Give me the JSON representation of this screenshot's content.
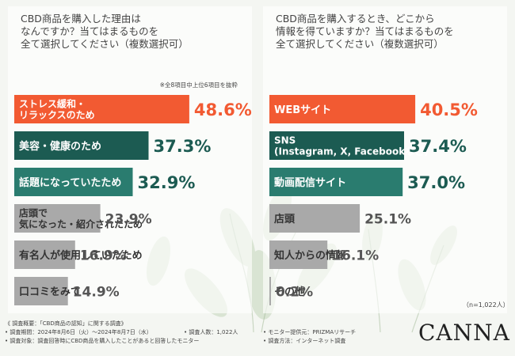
{
  "colors": {
    "highlight": "#f25a32",
    "dark": "#1c5b52",
    "mid": "#2a7c6f",
    "gray": "#a9a9a9",
    "value_highlight": "#f25a32",
    "value_dark": "#1c5b52",
    "value_gray": "#555555"
  },
  "left": {
    "title": "CBD商品を購入した理由は\nなんですか？当てはまるものを\n全て選択してください（複数選択可）",
    "note": "※全8項目中上位6項目を抜粋"
  },
  "right": {
    "title": "CBD商品を購入するとき、どこから\n情報を得ていますか？当てはまるものを\n全て選択してください（複数選択可）",
    "n": "（n=1,022人）"
  },
  "chart_data": [
    {
      "type": "bar",
      "orientation": "horizontal",
      "unit": "%",
      "categories": [
        "ストレス緩和・\nリラックスのため",
        "美容・健康のため",
        "話題になっていたため",
        "店頭で\n気になった・紹介されたため",
        "有名人が使用していたため",
        "口コミをみて"
      ],
      "values": [
        48.6,
        37.3,
        32.9,
        23.9,
        16.9,
        14.9
      ],
      "value_labels": [
        "48.6%",
        "37.3%",
        "32.9%",
        "23.9%",
        "16.9%",
        "14.9%"
      ],
      "styles": [
        "highlight",
        "dark",
        "mid",
        "gray",
        "gray",
        "gray"
      ]
    },
    {
      "type": "bar",
      "orientation": "horizontal",
      "unit": "%",
      "categories": [
        "WEBサイト",
        "SNS\n(Instagram, X, Facebookなど)",
        "動画配信サイト",
        "店頭",
        "知人からの情報",
        "その他"
      ],
      "values": [
        40.5,
        37.4,
        37.0,
        25.1,
        16.1,
        0.2
      ],
      "value_labels": [
        "40.5%",
        "37.4%",
        "37.0%",
        "25.1%",
        "16.1%",
        "0.2%"
      ],
      "styles": [
        "highlight",
        "dark",
        "mid",
        "gray",
        "gray",
        "gray"
      ]
    }
  ],
  "footer": {
    "line1": "《 調査概要：「CBD商品の認知」に関する調査》",
    "period": "• 調査期間：2024年8月6日（火）～2024年8月7日（水）",
    "target": "• 調査対象：調査回答時にCBD商品を購入したことがあると回答したモニター",
    "count": "• 調査人数：1,022人",
    "provider": "• モニター提供元：PRIZMAリサーチ",
    "method": "• 調査方法：インターネット調査"
  },
  "logo": "CANNA"
}
